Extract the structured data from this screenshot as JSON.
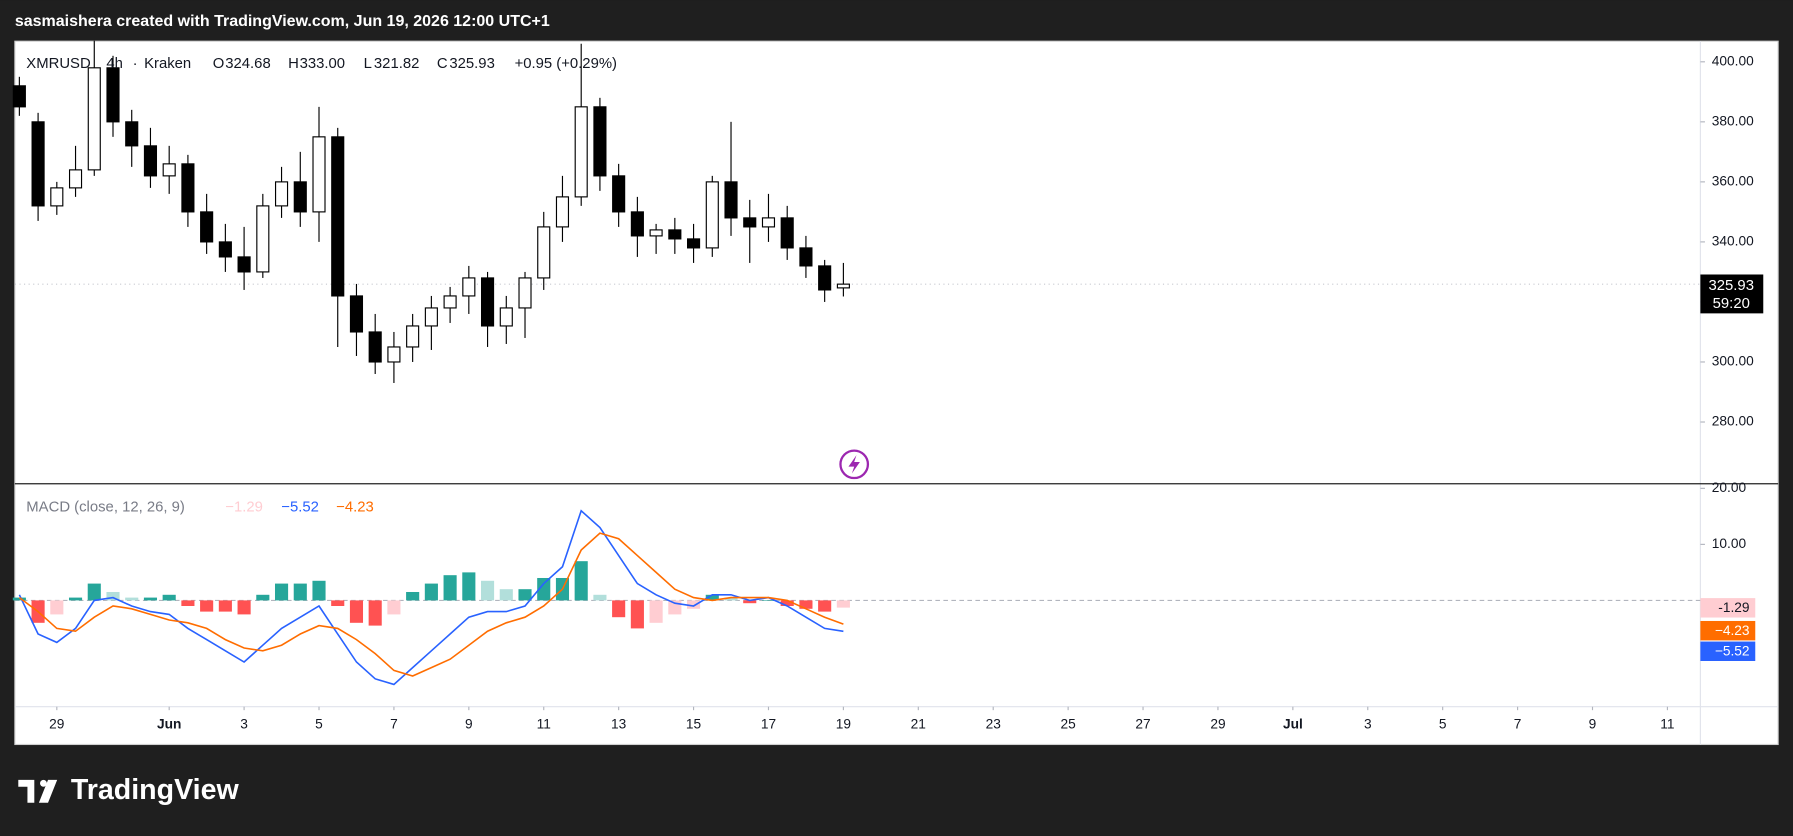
{
  "chart_data": {
    "type": "candlestick",
    "header": "sasmaishera created with TradingView.com, Jun 19, 2026 12:00 UTC+1",
    "symbol": "XMRUSD",
    "interval": "4h",
    "exchange": "Kraken",
    "legend": {
      "o_label": "O",
      "open": "324.68",
      "h_label": "H",
      "high": "333.00",
      "l_label": "L",
      "low": "321.82",
      "c_label": "C",
      "close": "325.93",
      "change": "+0.95 (+0.29%)"
    },
    "price_tag": "325.93",
    "countdown": "59:20",
    "logo": "TradingView",
    "x": [
      -3,
      -2.5,
      -2,
      -1.5,
      -1,
      -0.5,
      0,
      0.5,
      1,
      1.5,
      2,
      2.5,
      3,
      3.5,
      4,
      4.5,
      5,
      5.5,
      6,
      6.5,
      7,
      7.5,
      8,
      8.5,
      9,
      9.5,
      10,
      10.5,
      11,
      11.5,
      12,
      12.5,
      13,
      13.5,
      14,
      14.5,
      15,
      15.5,
      16,
      16.5,
      17,
      17.5,
      18,
      18.5,
      19
    ],
    "open": [
      392,
      380,
      352,
      358,
      364,
      398,
      380,
      372,
      362,
      366,
      350,
      340,
      335,
      330,
      352,
      360,
      350,
      375,
      322,
      310,
      300,
      305,
      312,
      318,
      322,
      328,
      312,
      318,
      328,
      345,
      355,
      385,
      362,
      350,
      342,
      344,
      341,
      338,
      360,
      348,
      345,
      348,
      338,
      332,
      324.68
    ],
    "high": [
      395,
      383,
      360,
      372,
      407,
      402,
      384,
      378,
      372,
      369,
      356,
      346,
      345,
      356,
      365,
      370,
      385,
      378,
      326,
      316,
      310,
      316,
      322,
      325,
      332,
      330,
      322,
      330,
      350,
      362,
      406,
      388,
      366,
      355,
      346,
      348,
      346,
      362,
      380,
      354,
      356,
      352,
      342,
      334,
      333
    ],
    "low": [
      382,
      347,
      349,
      355,
      362,
      375,
      365,
      358,
      356,
      345,
      336,
      330,
      324,
      328,
      348,
      345,
      340,
      305,
      302,
      296,
      293,
      300,
      304,
      313,
      316,
      305,
      306,
      308,
      324,
      340,
      352,
      357,
      345,
      335,
      336,
      336,
      333,
      335,
      342,
      333,
      340,
      334,
      328,
      320,
      321.82
    ],
    "close": [
      385,
      352,
      358,
      364,
      398,
      380,
      372,
      362,
      366,
      350,
      340,
      335,
      330,
      352,
      360,
      350,
      375,
      322,
      310,
      300,
      305,
      312,
      318,
      322,
      328,
      312,
      318,
      328,
      345,
      355,
      385,
      362,
      350,
      342,
      344,
      341,
      338,
      360,
      348,
      345,
      348,
      338,
      332,
      324,
      325.93
    ],
    "up_color": "#ffffff",
    "down_color": "#000000",
    "xlim": [
      -3.12,
      41.88
    ],
    "xticks": [
      {
        "value": -2,
        "label": "29"
      },
      {
        "value": 1,
        "label": "Jun"
      },
      3,
      5,
      7,
      9,
      11,
      13,
      15,
      17,
      19,
      21,
      23,
      25,
      27,
      29,
      {
        "value": 31,
        "label": "Jul"
      },
      {
        "value": 33,
        "label": "3"
      },
      {
        "value": 35,
        "label": "5"
      },
      {
        "value": 37,
        "label": "7"
      },
      {
        "value": 39,
        "label": "9"
      },
      {
        "value": 41,
        "label": "11"
      }
    ],
    "ylim": [
      259.43,
      406.86
    ],
    "yticks": [
      {
        "value": 280,
        "label": "280.00"
      },
      {
        "value": 300,
        "label": "300.00"
      },
      {
        "value": 320,
        "label": "320.00"
      },
      {
        "value": 340,
        "label": "340.00"
      },
      {
        "value": 360,
        "label": "360.00"
      },
      {
        "value": 380,
        "label": "380.00"
      },
      {
        "value": 400,
        "label": "400.00"
      }
    ],
    "macd": {
      "title": "MACD (close, 12, 26, 9)",
      "ylim": [
        -18.98,
        20.82
      ],
      "yticks": [
        {
          "value": 10,
          "label": "10.00"
        },
        {
          "value": 20,
          "label": "20.00"
        }
      ],
      "histogram": {
        "name": "Histogram",
        "colors": [
          "#26a69a",
          "#b2dfdb",
          "#ffcdd2",
          "#ff5252"
        ],
        "values": [
          0.5,
          -4,
          -2.5,
          0.5,
          3,
          1.5,
          0.5,
          0.5,
          1,
          -1,
          -2,
          -2,
          -2.5,
          1,
          3,
          3,
          3.5,
          -1,
          -4,
          -4.5,
          -2.5,
          1.5,
          3,
          4.5,
          5,
          3.5,
          2,
          2,
          4,
          4,
          7,
          1,
          -3,
          -5,
          -4,
          -2.5,
          -1.5,
          1,
          0.5,
          -0.5,
          0,
          -1,
          -1.5,
          -2,
          -1.29
        ],
        "last_label": "−1.29",
        "tag_label": "-1.29"
      },
      "series": [
        {
          "name": "MACD",
          "color": "#2962ff",
          "values": [
            1,
            -6,
            -7.5,
            -5,
            0,
            0.5,
            -1,
            -2,
            -2.5,
            -5,
            -7,
            -9,
            -11,
            -8,
            -5,
            -3,
            -1,
            -6,
            -11,
            -14,
            -15,
            -12,
            -9,
            -6,
            -3,
            -2,
            -2,
            -1,
            3,
            6,
            16,
            13,
            8,
            3,
            1,
            -0.5,
            -1,
            1,
            1,
            0,
            0.5,
            -1,
            -3,
            -5,
            -5.52
          ],
          "last_label": "−5.52"
        },
        {
          "name": "Signal",
          "color": "#ff6d00",
          "values": [
            0.5,
            -2,
            -5,
            -5.5,
            -3,
            -1,
            -1.5,
            -2.5,
            -3.5,
            -4,
            -5,
            -7,
            -8.5,
            -9,
            -8,
            -6,
            -4.5,
            -5,
            -7,
            -9.5,
            -12.5,
            -13.5,
            -12,
            -10.5,
            -8,
            -5.5,
            -4,
            -3,
            -1,
            2,
            9,
            12,
            11,
            8,
            5,
            2,
            0.5,
            0,
            0.5,
            0.5,
            0.5,
            0,
            -1.5,
            -3,
            -4.23
          ],
          "last_label": "−4.23"
        }
      ]
    }
  }
}
